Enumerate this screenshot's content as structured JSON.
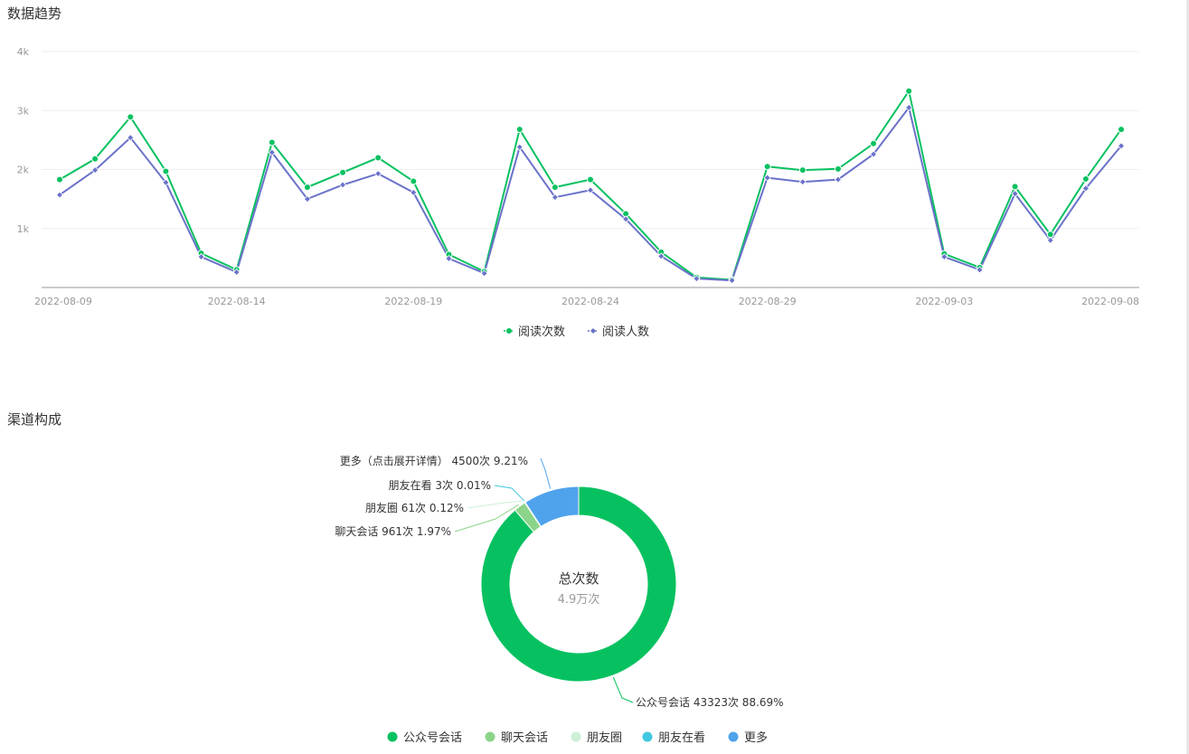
{
  "sections": {
    "trend_title": "数据趋势",
    "channel_title": "渠道构成"
  },
  "colors": {
    "green": "#07C160",
    "purple": "#6B72C9",
    "grid": "#EFEFEF",
    "axis": "#BBBBBB"
  },
  "chart_data": [
    {
      "type": "line",
      "x": [
        "2022-08-09",
        "2022-08-10",
        "2022-08-11",
        "2022-08-12",
        "2022-08-13",
        "2022-08-14",
        "2022-08-15",
        "2022-08-16",
        "2022-08-17",
        "2022-08-18",
        "2022-08-19",
        "2022-08-20",
        "2022-08-21",
        "2022-08-22",
        "2022-08-23",
        "2022-08-24",
        "2022-08-25",
        "2022-08-26",
        "2022-08-27",
        "2022-08-28",
        "2022-08-29",
        "2022-08-30",
        "2022-08-31",
        "2022-09-01",
        "2022-09-02",
        "2022-09-03",
        "2022-09-04",
        "2022-09-05",
        "2022-09-06",
        "2022-09-07",
        "2022-09-08"
      ],
      "xticks": [
        "2022-08-09",
        "2022-08-14",
        "2022-08-19",
        "2022-08-24",
        "2022-08-29",
        "2022-09-03",
        "2022-09-08"
      ],
      "yticks": [
        "1k",
        "2k",
        "3k",
        "4k"
      ],
      "ylim": [
        0,
        4000
      ],
      "series": [
        {
          "name": "阅读次数",
          "color": "#07C160",
          "marker": "circle",
          "values": [
            1830,
            2180,
            2890,
            1970,
            580,
            300,
            2460,
            1700,
            1950,
            2200,
            1800,
            560,
            270,
            2680,
            1700,
            1830,
            1250,
            600,
            170,
            130,
            2050,
            1990,
            2010,
            2440,
            3330,
            570,
            340,
            1710,
            900,
            1840,
            2680
          ]
        },
        {
          "name": "阅读人数",
          "color": "#6B72C9",
          "marker": "diamond",
          "values": [
            1570,
            1990,
            2540,
            1780,
            520,
            260,
            2290,
            1500,
            1740,
            1930,
            1610,
            490,
            240,
            2380,
            1530,
            1650,
            1160,
            530,
            150,
            120,
            1860,
            1790,
            1830,
            2260,
            3050,
            520,
            300,
            1590,
            800,
            1680,
            2400
          ]
        }
      ],
      "legend": "bottom-center",
      "grid": true
    },
    {
      "type": "pie",
      "donut": true,
      "center_title": "总次数",
      "center_value": "4.9万次",
      "slices": [
        {
          "name": "公众号会话",
          "value": 43323,
          "percent": "88.69%",
          "label": "公众号会话 43323次 88.69%",
          "color": "#07C160"
        },
        {
          "name": "聊天会话",
          "value": 961,
          "percent": "1.97%",
          "label": "聊天会话 961次 1.97%",
          "color": "#8CD48A"
        },
        {
          "name": "朋友圈",
          "value": 61,
          "percent": "0.12%",
          "label": "朋友圈 61次 0.12%",
          "color": "#CDEFD6"
        },
        {
          "name": "朋友在看",
          "value": 3,
          "percent": "0.01%",
          "label": "朋友在看 3次 0.01%",
          "color": "#3FC8E0"
        },
        {
          "name": "更多",
          "value": 4500,
          "percent": "9.21%",
          "label": "更多（点击展开详情） 4500次 9.21%",
          "color": "#4FA3EC"
        }
      ],
      "legend": "bottom-center"
    }
  ]
}
